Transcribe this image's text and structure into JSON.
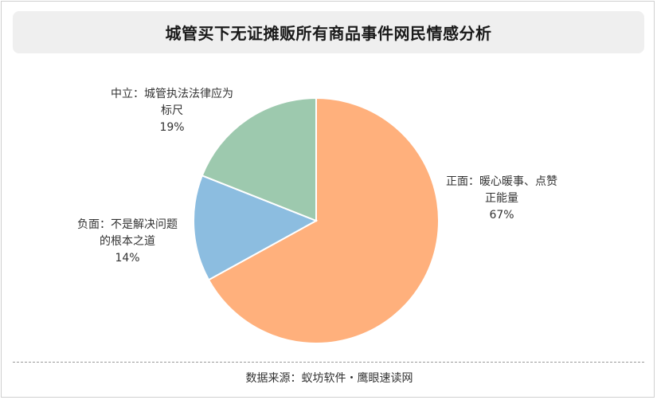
{
  "chart_data": {
    "type": "pie",
    "title": "城管买下无证摊贩所有商品事件网民情感分析",
    "slices": [
      {
        "label_lines": [
          "正面：暖心暖事、点赞",
          "正能量"
        ],
        "value": 67,
        "value_label": "67%",
        "color": "#FFB07C"
      },
      {
        "label_lines": [
          "负面：不是解决问题",
          "的根本之道"
        ],
        "value": 14,
        "value_label": "14%",
        "color": "#8CBDE0"
      },
      {
        "label_lines": [
          "中立：城管执法法律应为",
          "标尺"
        ],
        "value": 19,
        "value_label": "19%",
        "color": "#9DC9AE"
      }
    ],
    "start_angle_deg": 0,
    "direction": "clockwise",
    "source": "数据来源：蚁坊软件・鹰眼速读网"
  }
}
